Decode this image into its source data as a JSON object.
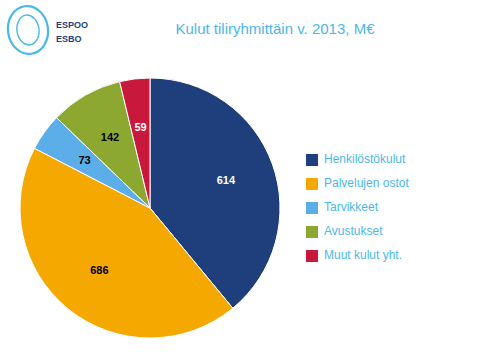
{
  "chart_data": {
    "type": "pie",
    "title": "Kulut tiliryhmittäin v. 2013, M€",
    "categories": [
      "Henkilöstökulut",
      "Palvelujen ostot",
      "Tarvikkeet",
      "Avustukset",
      "Muut kulut yht."
    ],
    "values": [
      614,
      686,
      73,
      142,
      59
    ],
    "colors": [
      "#1F3E7C",
      "#F5A800",
      "#5BAEE8",
      "#8CA830",
      "#C8193C"
    ],
    "data_labels": true,
    "legend": "right",
    "annotations": [
      "ESPOO",
      "ESBO"
    ]
  }
}
